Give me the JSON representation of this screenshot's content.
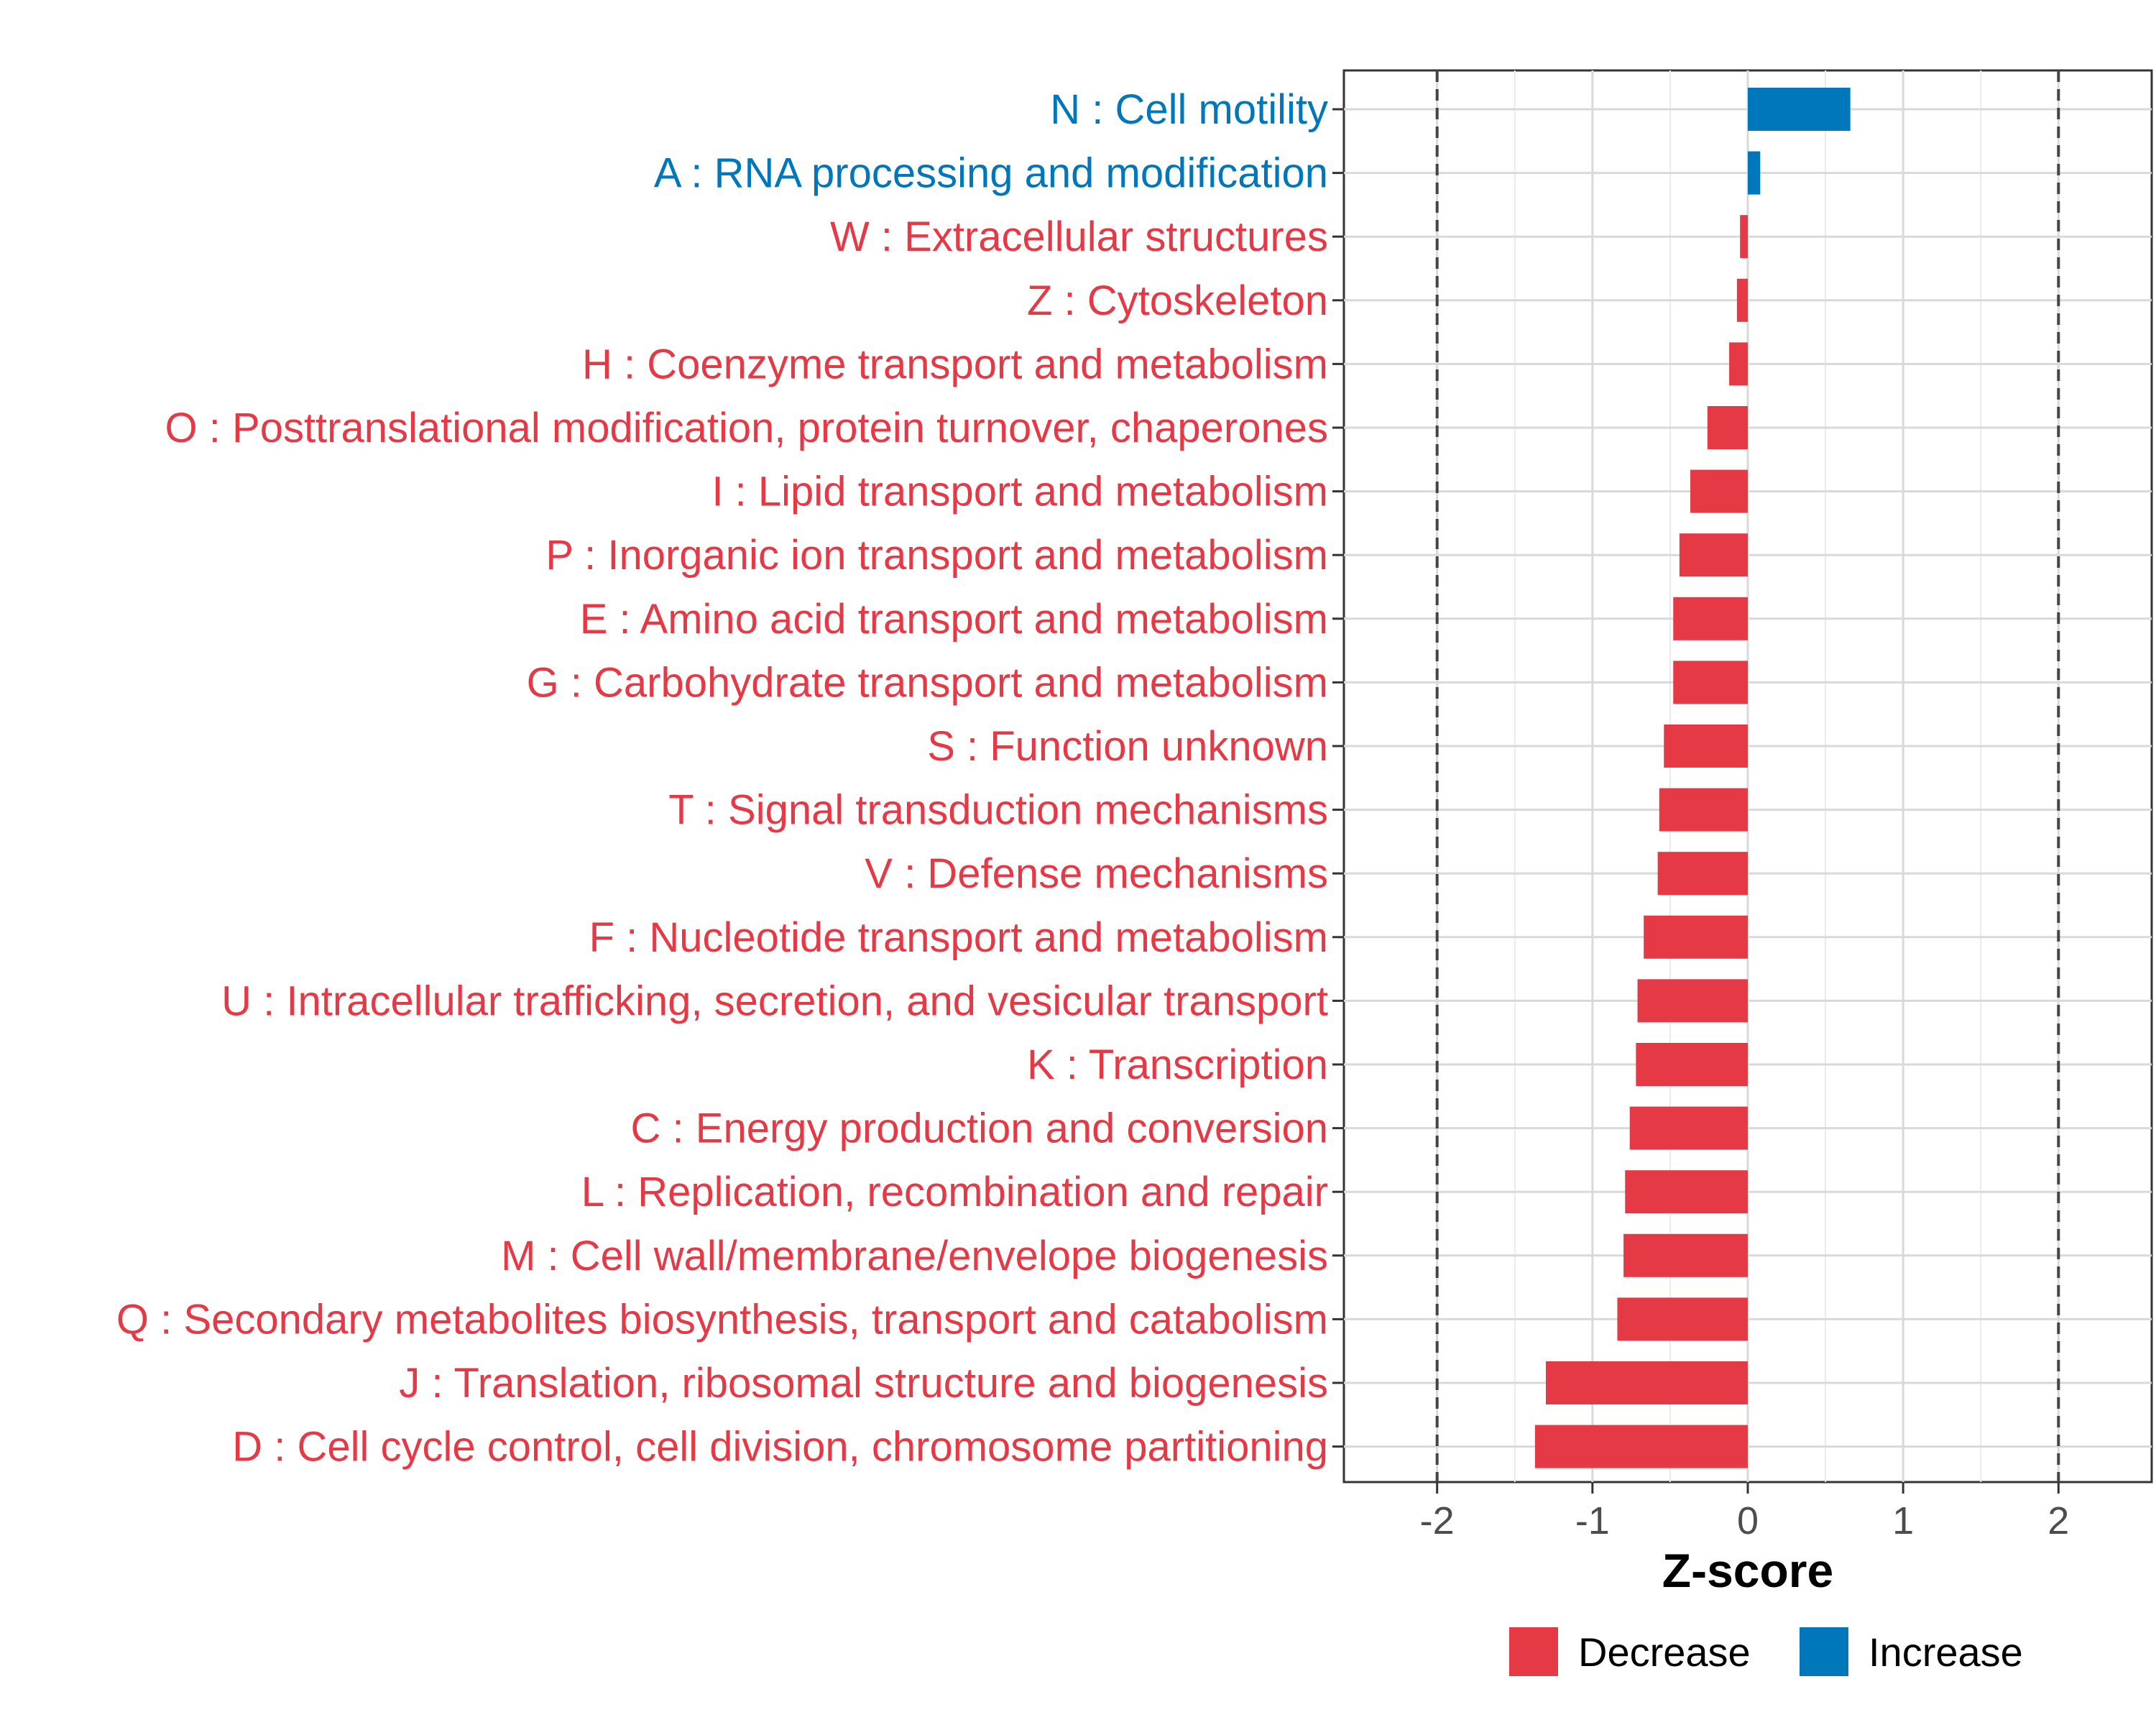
{
  "chart_data": {
    "type": "bar",
    "orientation": "horizontal",
    "xlabel": "Z-score",
    "xlim": [
      -2.6,
      2.6
    ],
    "x_ticks": [
      -2,
      -1,
      0,
      1,
      2
    ],
    "x_tick_labels": [
      "-2",
      "-1",
      "0",
      "1",
      "2"
    ],
    "reference_lines": [
      -2,
      2
    ],
    "grid": true,
    "legend_position": "bottom",
    "legend": [
      {
        "name": "Decrease",
        "color": "#E63946"
      },
      {
        "name": "Increase",
        "color": "#0077BB"
      }
    ],
    "categories": [
      "N : Cell motility",
      "A : RNA processing and modification",
      "W : Extracellular structures",
      "Z : Cytoskeleton",
      "H : Coenzyme transport and metabolism",
      "O : Posttranslational modification, protein turnover, chaperones",
      "I : Lipid transport and metabolism",
      "P : Inorganic ion transport and metabolism",
      "E : Amino acid transport and metabolism",
      "G : Carbohydrate transport and metabolism",
      "S : Function unknown",
      "T : Signal transduction mechanisms",
      "V : Defense mechanisms",
      "F : Nucleotide transport and metabolism",
      "U : Intracellular trafficking, secretion, and vesicular transport",
      "K : Transcription",
      "C : Energy production and conversion",
      "L : Replication, recombination and repair",
      "M : Cell wall/membrane/envelope biogenesis",
      "Q : Secondary metabolites biosynthesis, transport and catabolism",
      "J : Translation, ribosomal structure and biogenesis",
      "D : Cell cycle control, cell division, chromosome partitioning"
    ],
    "values": [
      0.66,
      0.08,
      -0.05,
      -0.07,
      -0.12,
      -0.26,
      -0.37,
      -0.44,
      -0.48,
      -0.48,
      -0.54,
      -0.57,
      -0.58,
      -0.67,
      -0.71,
      -0.72,
      -0.76,
      -0.79,
      -0.8,
      -0.84,
      -1.3,
      -1.37
    ],
    "direction": [
      "Increase",
      "Increase",
      "Decrease",
      "Decrease",
      "Decrease",
      "Decrease",
      "Decrease",
      "Decrease",
      "Decrease",
      "Decrease",
      "Decrease",
      "Decrease",
      "Decrease",
      "Decrease",
      "Decrease",
      "Decrease",
      "Decrease",
      "Decrease",
      "Decrease",
      "Decrease",
      "Decrease",
      "Decrease"
    ]
  }
}
